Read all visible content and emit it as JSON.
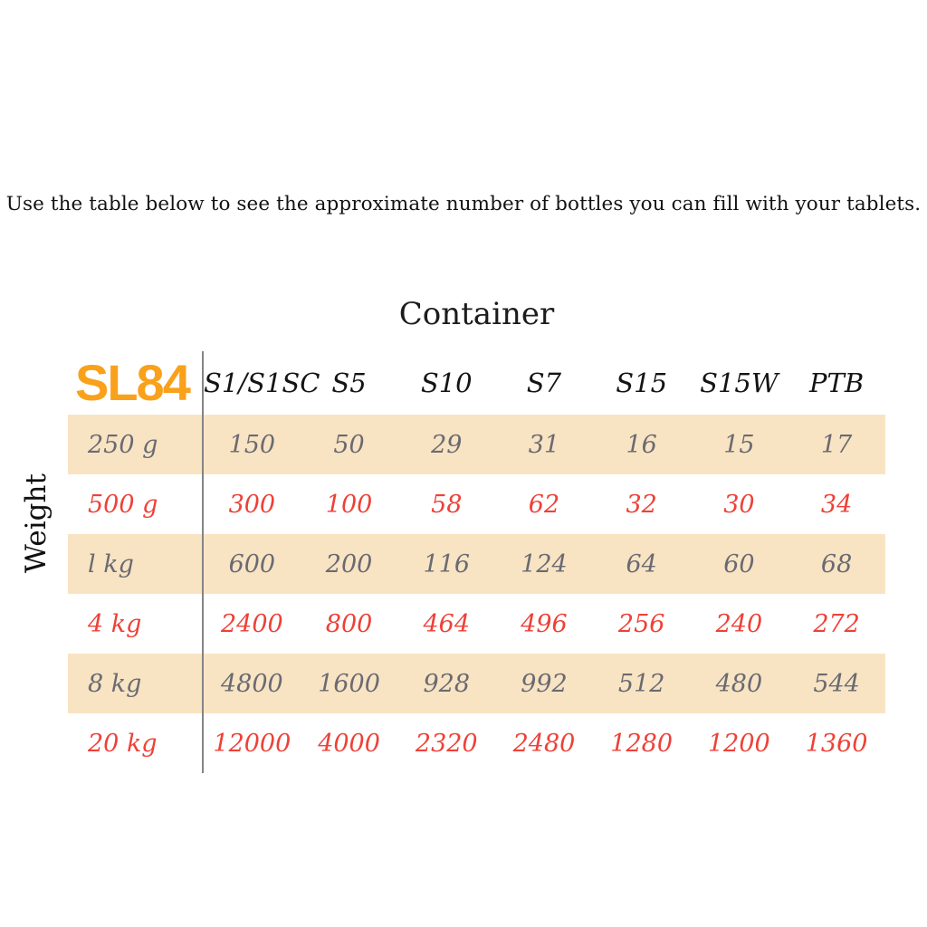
{
  "intro": {
    "text": "Use the table below to see the approximate number of bottles you can fill with your tablets."
  },
  "chart_data": {
    "type": "table",
    "title": "Container",
    "row_axis_label": "Weight",
    "corner_label": "SL84",
    "columns": [
      "S1/S1SC",
      "S5",
      "S10",
      "S7",
      "S15",
      "S15W",
      "PTB"
    ],
    "rows": [
      {
        "label": "250 g",
        "tone": "gray",
        "shaded": true,
        "values": [
          150,
          50,
          29,
          31,
          16,
          15,
          17
        ]
      },
      {
        "label": "500 g",
        "tone": "red",
        "shaded": false,
        "values": [
          300,
          100,
          58,
          62,
          32,
          30,
          34
        ]
      },
      {
        "label": "l kg",
        "tone": "gray",
        "shaded": true,
        "values": [
          600,
          200,
          116,
          124,
          64,
          60,
          68
        ]
      },
      {
        "label": "4 kg",
        "tone": "red",
        "shaded": false,
        "values": [
          2400,
          800,
          464,
          496,
          256,
          240,
          272
        ]
      },
      {
        "label": "8 kg",
        "tone": "gray",
        "shaded": true,
        "values": [
          4800,
          1600,
          928,
          992,
          512,
          480,
          544
        ]
      },
      {
        "label": "20 kg",
        "tone": "red",
        "shaded": false,
        "values": [
          12000,
          4000,
          2320,
          2480,
          1280,
          1200,
          1360
        ]
      }
    ],
    "layout": {
      "shaded_row_color": "#F8E4C3",
      "gray_value_color": "#6A6A72",
      "red_value_color": "#EE4138",
      "corner_label_color": "#F9A11B",
      "divider_color": "#848484",
      "grid": "alternating row shading, single vertical rule after label column"
    }
  }
}
